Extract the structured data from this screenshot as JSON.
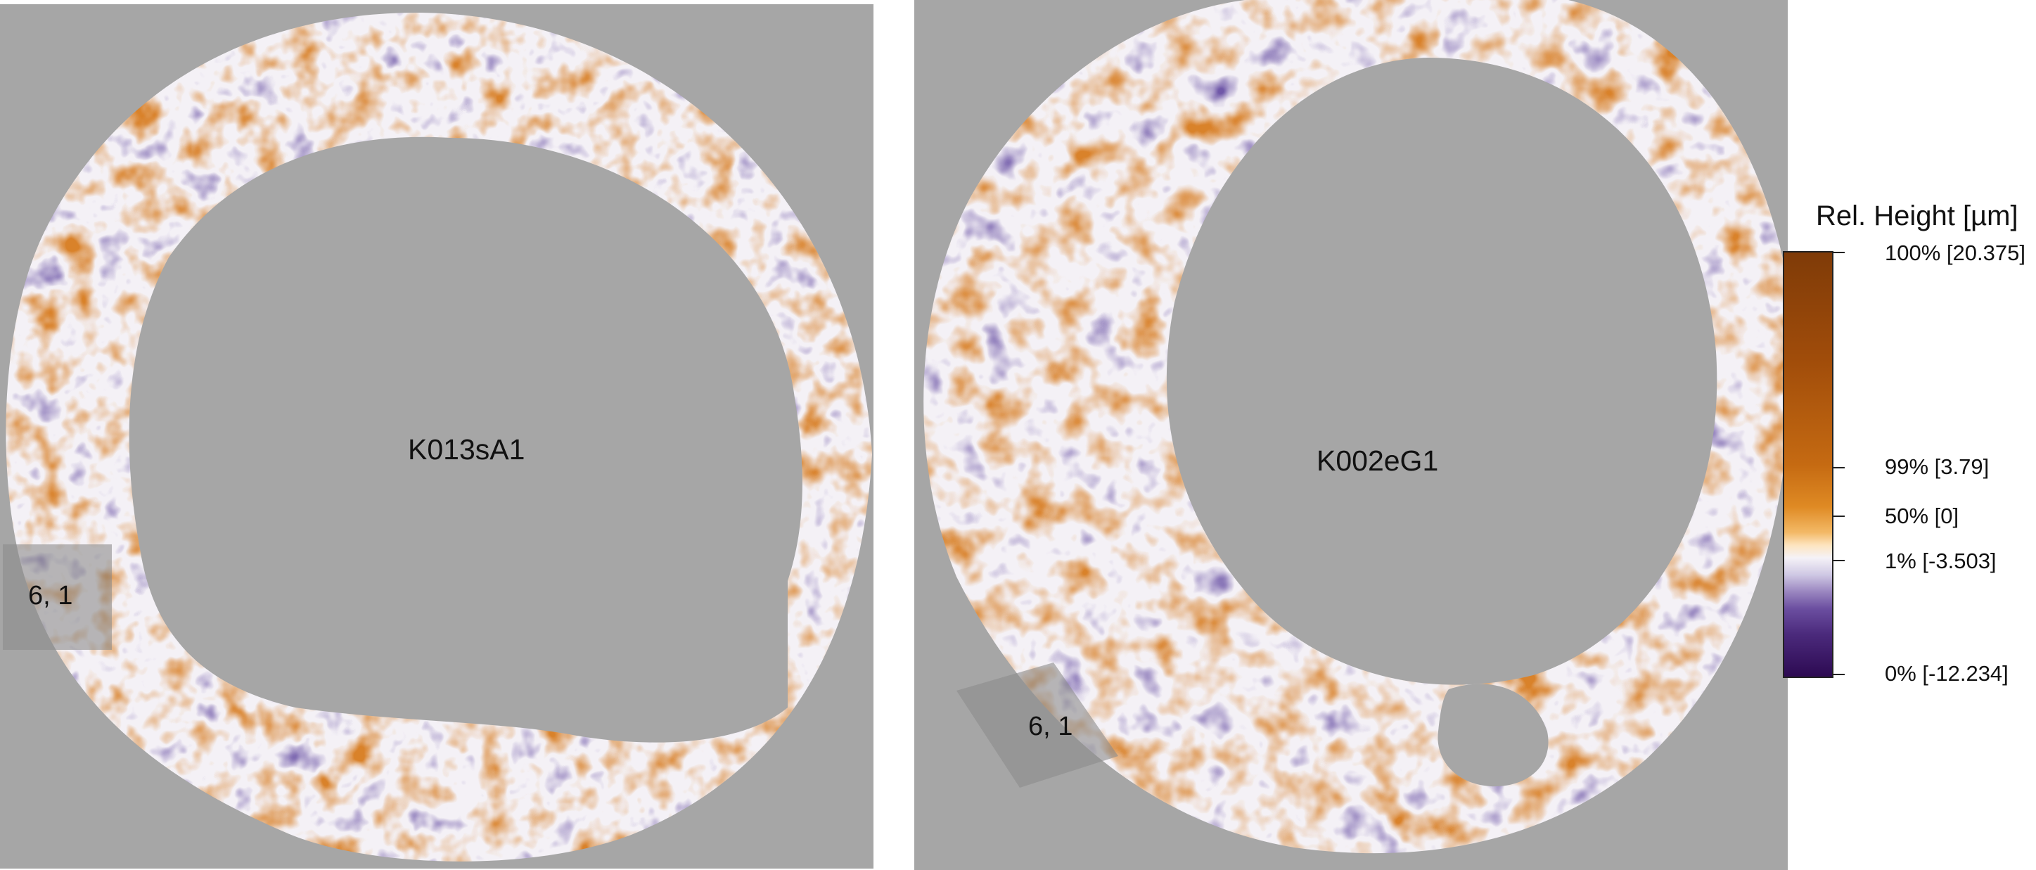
{
  "images": {
    "left": {
      "sample_label": "K013sA1",
      "cell_label": "6, 1"
    },
    "right": {
      "sample_label": "K002eG1",
      "cell_label": "6, 1"
    }
  },
  "legend": {
    "title": "Rel. Height [µm]",
    "stops": [
      {
        "label": "100% [20.375]",
        "color": "#7f3b08"
      },
      {
        "label": "99% [3.79]",
        "color": "#df8a24"
      },
      {
        "label": "50% [0]",
        "color": "#f5f2f7"
      },
      {
        "label": "1% [-3.503]",
        "color": "#6b4ea0"
      },
      {
        "label": "0% [-12.234]",
        "color": "#2d0a52"
      }
    ]
  }
}
